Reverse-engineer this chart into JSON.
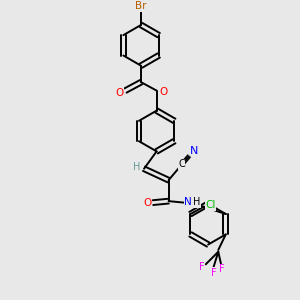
{
  "bg_color": "#e8e8e8",
  "atom_colors": {
    "Br": "#b85c00",
    "O": "#ff0000",
    "N": "#0000ff",
    "Cl": "#00bb00",
    "F": "#ff00ff",
    "C": "#000000",
    "H_vinyl": "#669999"
  },
  "bond_lw": 1.4,
  "font_size": 7.5,
  "ring_r": 0.68
}
